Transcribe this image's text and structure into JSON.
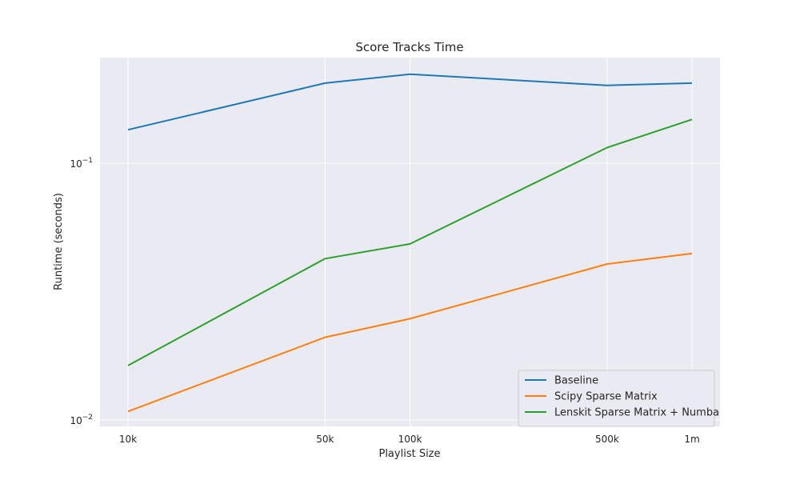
{
  "chart_data": {
    "type": "line",
    "title": "Score Tracks Time",
    "xlabel": "Playlist Size",
    "ylabel": "Runtime (seconds)",
    "x_scale": "log",
    "y_scale": "log",
    "categories": [
      "10k",
      "50k",
      "100k",
      "500k",
      "1m"
    ],
    "x": [
      10000,
      50000,
      100000,
      500000,
      1000000
    ],
    "x_tick_labels": [
      "10k",
      "50k",
      "100k",
      "500k",
      "1m"
    ],
    "y_ticks": [
      {
        "base": "10",
        "exp": "−2"
      },
      {
        "base": "10",
        "exp": "−1"
      }
    ],
    "grid": true,
    "legend_position": "lower-right",
    "background_color": "#eaeaf2",
    "series": [
      {
        "name": "Baseline",
        "color": "#1f77b4",
        "values": [
          0.135,
          0.205,
          0.222,
          0.201,
          0.205
        ]
      },
      {
        "name": "Scipy Sparse Matrix",
        "color": "#ff7f0e",
        "values": [
          0.0108,
          0.021,
          0.0248,
          0.0405,
          0.0445
        ]
      },
      {
        "name": "Lenskit Sparse Matrix + Numba",
        "color": "#2ca02c",
        "values": [
          0.0163,
          0.0425,
          0.0485,
          0.115,
          0.148
        ]
      }
    ]
  }
}
